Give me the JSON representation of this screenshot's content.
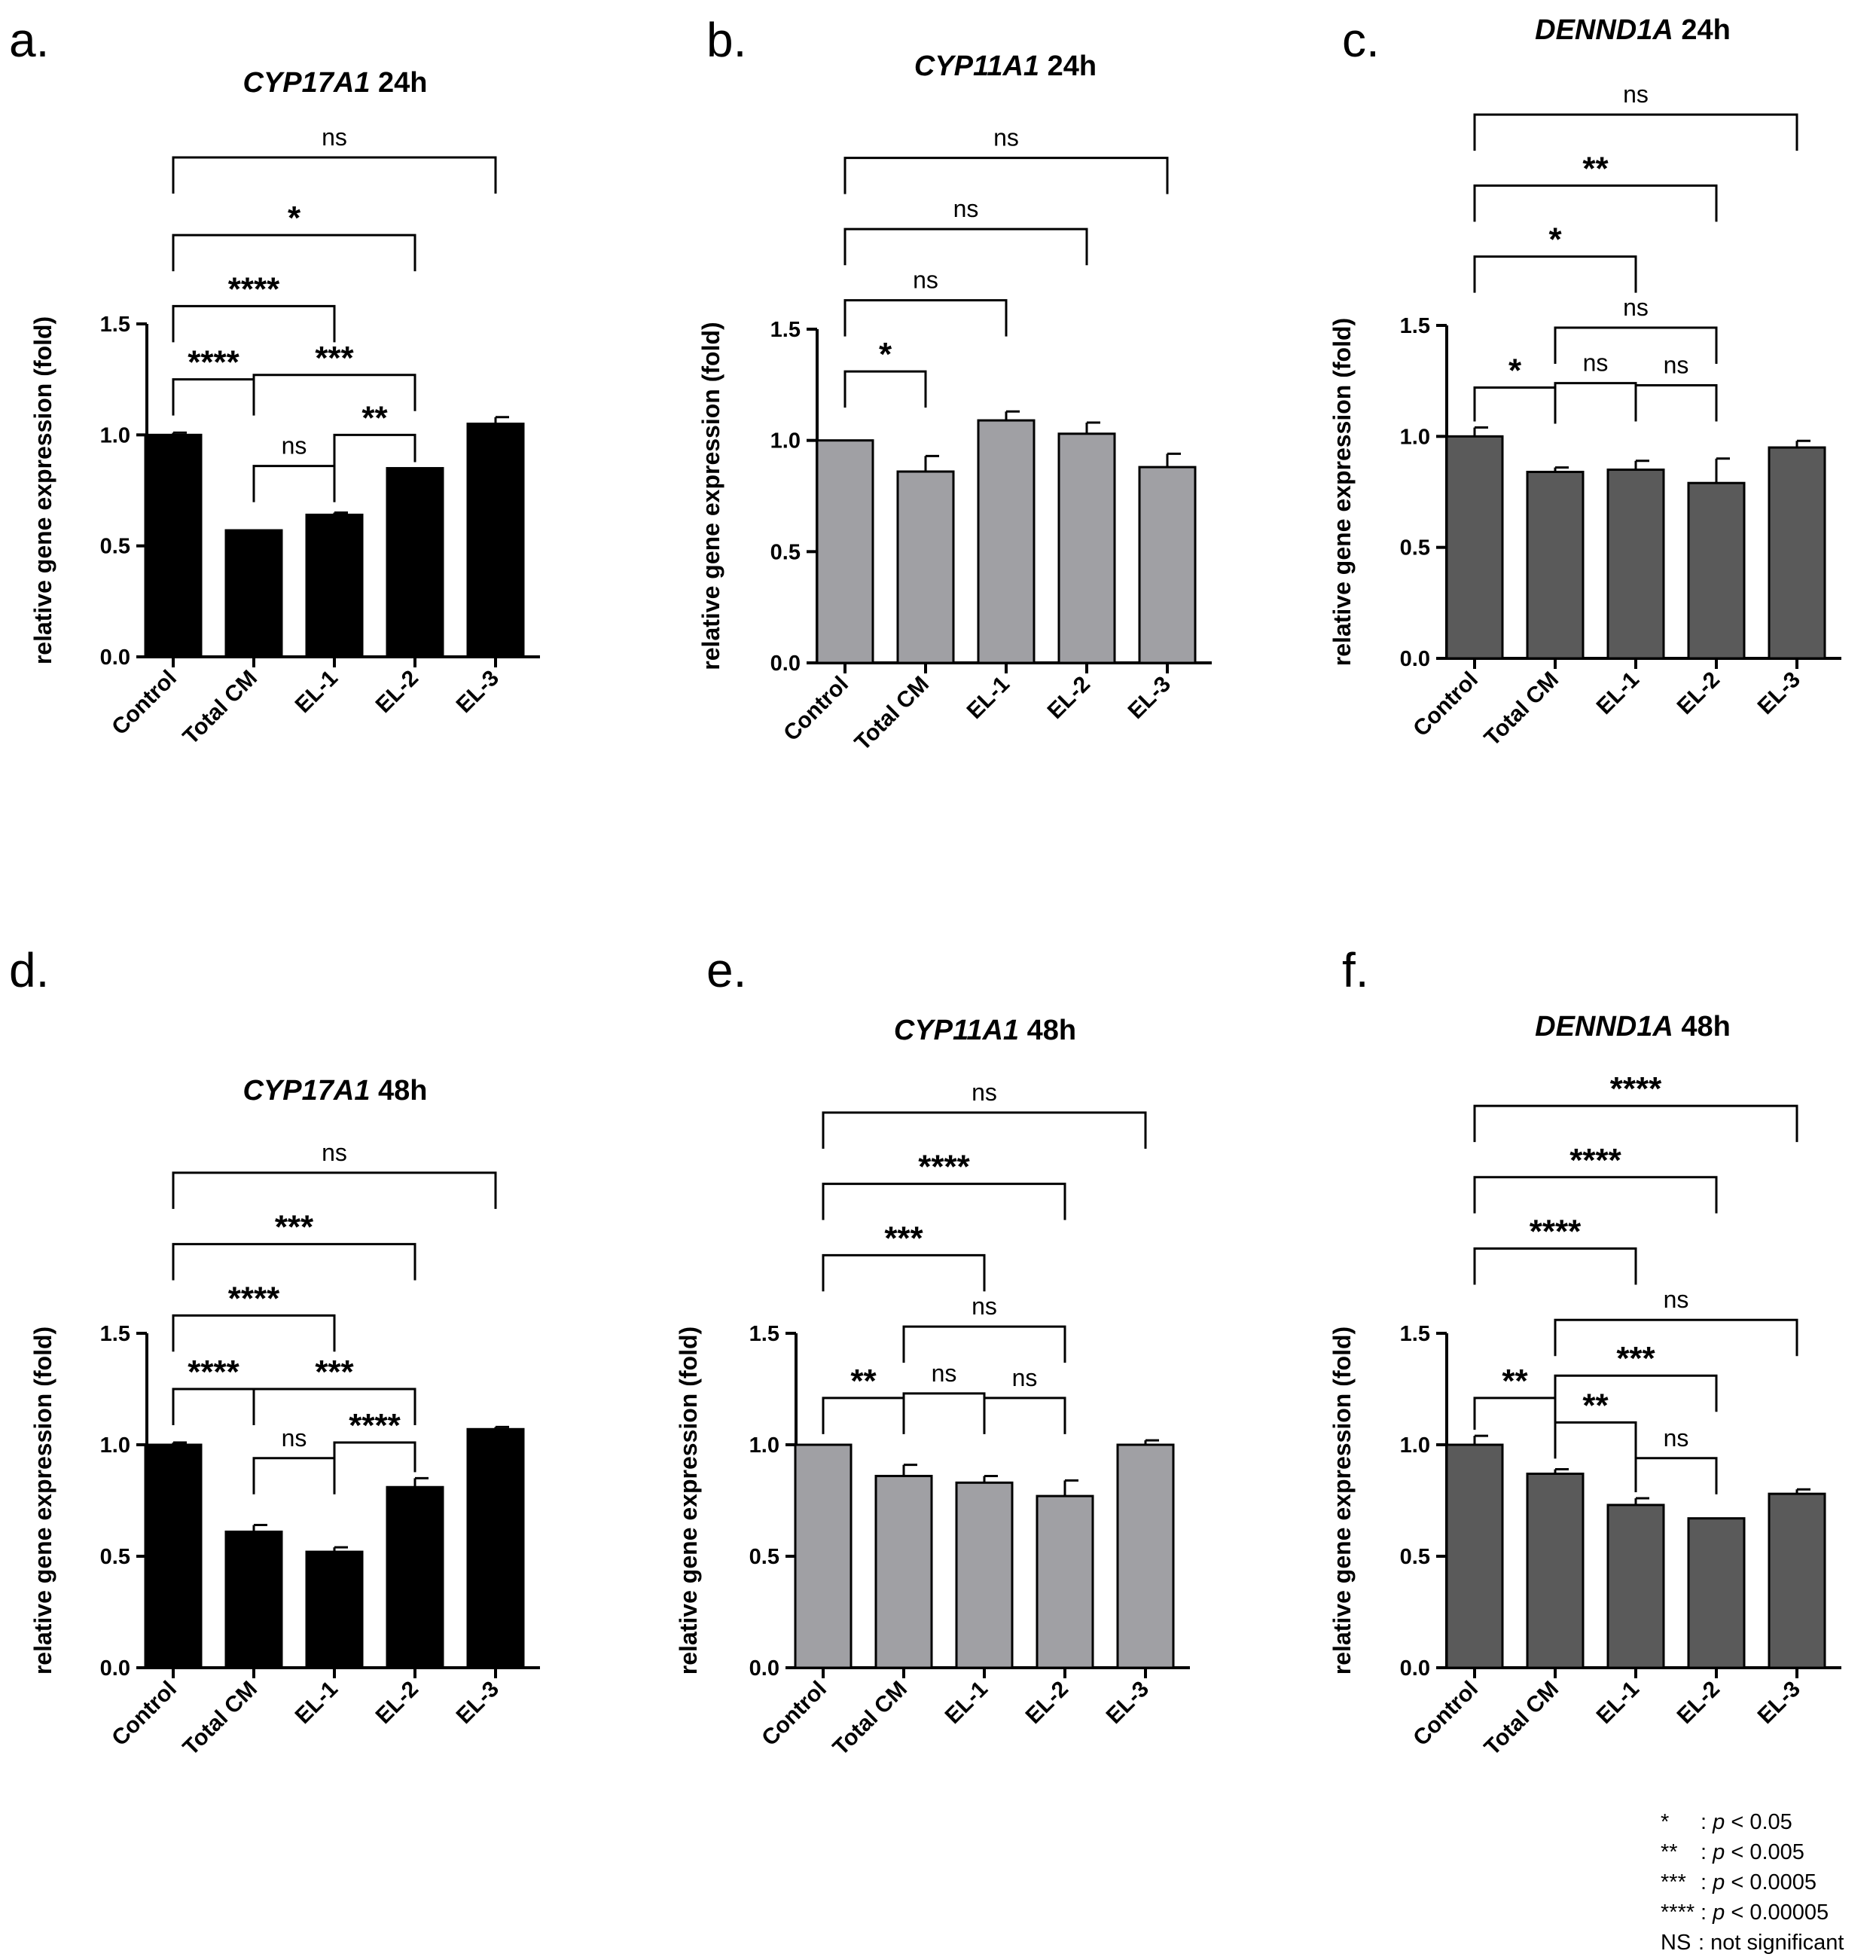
{
  "chart_data": [
    {
      "panel": "a.",
      "type": "bar",
      "title_gene": "CYP17A1",
      "title_time": " 24h",
      "ylabel": "relative gene expression (fold)",
      "ylim": [
        0,
        1.5
      ],
      "yticks": [
        "0.0",
        "0.5",
        "1.0",
        "1.5"
      ],
      "categories": [
        "Control",
        "Total CM",
        "EL-1",
        "EL-2",
        "EL-3"
      ],
      "values": [
        1.0,
        0.57,
        0.64,
        0.85,
        1.05
      ],
      "errors": [
        0.01,
        0.0,
        0.01,
        0.0,
        0.03
      ],
      "bar_color": "#000000",
      "comparisons": [
        {
          "from": 0,
          "to": 1,
          "label": "****",
          "level": 1.25
        },
        {
          "from": 1,
          "to": 2,
          "label": "ns",
          "level": 0.86
        },
        {
          "from": 2,
          "to": 3,
          "label": "**",
          "level": 1.0
        },
        {
          "from": 1,
          "to": 3,
          "label": "***",
          "level": 1.27
        },
        {
          "from": 0,
          "to": 2,
          "label": "****",
          "level": 1.58
        },
        {
          "from": 0,
          "to": 3,
          "label": "*",
          "level": 1.9
        },
        {
          "from": 0,
          "to": 4,
          "label": "ns",
          "level": 2.25
        }
      ]
    },
    {
      "panel": "b.",
      "type": "bar",
      "title_gene": "CYP11A1",
      "title_time": " 24h",
      "ylabel": "relative gene expression (fold)",
      "ylim": [
        0,
        1.5
      ],
      "yticks": [
        "0.0",
        "0.5",
        "1.0",
        "1.5"
      ],
      "categories": [
        "Control",
        "Total CM",
        "EL-1",
        "EL-2",
        "EL-3"
      ],
      "values": [
        1.0,
        0.86,
        1.09,
        1.03,
        0.88
      ],
      "errors": [
        0.0,
        0.07,
        0.04,
        0.05,
        0.06
      ],
      "bar_color": "#a0a0a4",
      "comparisons": [
        {
          "from": 0,
          "to": 1,
          "label": "*",
          "level": 1.31
        },
        {
          "from": 0,
          "to": 2,
          "label": "ns",
          "level": 1.63
        },
        {
          "from": 0,
          "to": 3,
          "label": "ns",
          "level": 1.95
        },
        {
          "from": 0,
          "to": 4,
          "label": "ns",
          "level": 2.27
        }
      ]
    },
    {
      "panel": "c.",
      "type": "bar",
      "title_gene": "DENND1A",
      "title_time": " 24h",
      "ylabel": "relative gene expression (fold)",
      "ylim": [
        0,
        1.5
      ],
      "yticks": [
        "0.0",
        "0.5",
        "1.0",
        "1.5"
      ],
      "categories": [
        "Control",
        "Total CM",
        "EL-1",
        "EL-2",
        "EL-3"
      ],
      "values": [
        1.0,
        0.84,
        0.85,
        0.79,
        0.95
      ],
      "errors": [
        0.04,
        0.02,
        0.04,
        0.11,
        0.03
      ],
      "bar_color": "#5a5a5a",
      "comparisons": [
        {
          "from": 0,
          "to": 1,
          "label": "*",
          "level": 1.22
        },
        {
          "from": 1,
          "to": 2,
          "label": "ns",
          "level": 1.24
        },
        {
          "from": 2,
          "to": 3,
          "label": "ns",
          "level": 1.23
        },
        {
          "from": 1,
          "to": 3,
          "label": "ns",
          "level": 1.49
        },
        {
          "from": 0,
          "to": 2,
          "label": "*",
          "level": 1.81
        },
        {
          "from": 0,
          "to": 3,
          "label": "**",
          "level": 2.13
        },
        {
          "from": 0,
          "to": 4,
          "label": "ns",
          "level": 2.45
        }
      ]
    },
    {
      "panel": "d.",
      "type": "bar",
      "title_gene": "CYP17A1",
      "title_time": " 48h",
      "ylabel": "relative gene expression (fold)",
      "ylim": [
        0,
        1.5
      ],
      "yticks": [
        "0.0",
        "0.5",
        "1.0",
        "1.5"
      ],
      "categories": [
        "Control",
        "Total CM",
        "EL-1",
        "EL-2",
        "EL-3"
      ],
      "values": [
        1.0,
        0.61,
        0.52,
        0.81,
        1.07
      ],
      "errors": [
        0.01,
        0.03,
        0.02,
        0.04,
        0.01
      ],
      "bar_color": "#000000",
      "comparisons": [
        {
          "from": 0,
          "to": 1,
          "label": "****",
          "level": 1.25
        },
        {
          "from": 1,
          "to": 2,
          "label": "ns",
          "level": 0.94
        },
        {
          "from": 2,
          "to": 3,
          "label": "****",
          "level": 1.01
        },
        {
          "from": 1,
          "to": 3,
          "label": "***",
          "level": 1.25
        },
        {
          "from": 0,
          "to": 2,
          "label": "****",
          "level": 1.58
        },
        {
          "from": 0,
          "to": 3,
          "label": "***",
          "level": 1.9
        },
        {
          "from": 0,
          "to": 4,
          "label": "ns",
          "level": 2.22
        }
      ]
    },
    {
      "panel": "e.",
      "type": "bar",
      "title_gene": "CYP11A1",
      "title_time": " 48h",
      "ylabel": "relative gene expression (fold)",
      "ylim": [
        0,
        1.5
      ],
      "yticks": [
        "0.0",
        "0.5",
        "1.0",
        "1.5"
      ],
      "categories": [
        "Control",
        "Total CM",
        "EL-1",
        "EL-2",
        "EL-3"
      ],
      "values": [
        1.0,
        0.86,
        0.83,
        0.77,
        1.0
      ],
      "errors": [
        0.0,
        0.05,
        0.03,
        0.07,
        0.02
      ],
      "bar_color": "#a0a0a4",
      "comparisons": [
        {
          "from": 0,
          "to": 1,
          "label": "**",
          "level": 1.21
        },
        {
          "from": 1,
          "to": 2,
          "label": "ns",
          "level": 1.23
        },
        {
          "from": 2,
          "to": 3,
          "label": "ns",
          "level": 1.21
        },
        {
          "from": 1,
          "to": 3,
          "label": "ns",
          "level": 1.53
        },
        {
          "from": 0,
          "to": 2,
          "label": "***",
          "level": 1.85
        },
        {
          "from": 0,
          "to": 3,
          "label": "****",
          "level": 2.17
        },
        {
          "from": 0,
          "to": 4,
          "label": "ns",
          "level": 2.49
        }
      ]
    },
    {
      "panel": "f.",
      "type": "bar",
      "title_gene": "DENND1A",
      "title_time": " 48h",
      "ylabel": "relative gene expression (fold)",
      "ylim": [
        0,
        1.5
      ],
      "yticks": [
        "0.0",
        "0.5",
        "1.0",
        "1.5"
      ],
      "categories": [
        "Control",
        "Total CM",
        "EL-1",
        "EL-2",
        "EL-3"
      ],
      "values": [
        1.0,
        0.87,
        0.73,
        0.67,
        0.78
      ],
      "errors": [
        0.04,
        0.02,
        0.03,
        0.0,
        0.02
      ],
      "bar_color": "#5a5a5a",
      "comparisons": [
        {
          "from": 0,
          "to": 1,
          "label": "**",
          "level": 1.21
        },
        {
          "from": 1,
          "to": 2,
          "label": "**",
          "level": 1.1
        },
        {
          "from": 2,
          "to": 3,
          "label": "ns",
          "level": 0.94
        },
        {
          "from": 1,
          "to": 3,
          "label": "***",
          "level": 1.31
        },
        {
          "from": 1,
          "to": 4,
          "label": "ns",
          "level": 1.56
        },
        {
          "from": 0,
          "to": 2,
          "label": "****",
          "level": 1.88
        },
        {
          "from": 0,
          "to": 3,
          "label": "****",
          "level": 2.2
        },
        {
          "from": 0,
          "to": 4,
          "label": "****",
          "level": 2.52
        }
      ]
    }
  ],
  "legend": [
    {
      "symbol": "*",
      "sep": " : ",
      "p": "p",
      "text": " < 0.05"
    },
    {
      "symbol": "**",
      "sep": " : ",
      "p": "p",
      "text": " < 0.005"
    },
    {
      "symbol": "***",
      "sep": " : ",
      "p": "p",
      "text": " < 0.0005"
    },
    {
      "symbol": "****",
      "sep": " : ",
      "p": "p",
      "text": " < 0.00005"
    },
    {
      "symbol": "NS",
      "sep": " : ",
      "p": "",
      "text": "not significant"
    }
  ]
}
